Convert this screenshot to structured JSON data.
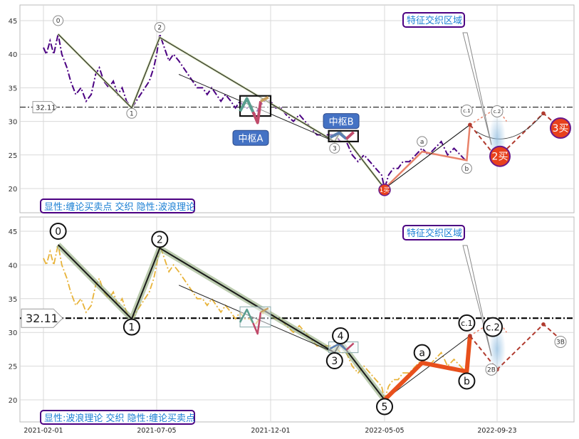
{
  "colors": {
    "price_top": "#4b0082",
    "price_bottom": "#e8b339",
    "wave_line": "#1a1a1a",
    "wave_halo": "#8faa7a",
    "buy_red": "#e8401c",
    "dash_red": "#b03a2e",
    "label_box_border": "#4b0082",
    "label_box_text": "#1a7fd4",
    "zs_fill": "#4472c4",
    "ref_line": "#000000"
  },
  "chart_data": [
    {
      "type": "line",
      "panel": "top",
      "x_ticks": [
        "2021-02-01",
        "2021-07-05",
        "2021-12-01",
        "2022-05-05",
        "2022-09-23"
      ],
      "ylim": [
        16.5,
        47.5
      ],
      "y_ticks": [
        20,
        25,
        30,
        35,
        40,
        45
      ],
      "grid": true,
      "ref_value": 32.11,
      "ref_label": "32.11",
      "caption": "显性:缠论买卖点 交织 隐性:波浪理论",
      "annotation_title": "特征交织区域",
      "series": [
        {
          "points": [
            [
              "2021-02-01",
              41
            ],
            [
              "2021-02-05",
              40
            ],
            [
              "2021-02-10",
              42
            ],
            [
              "2021-02-15",
              40
            ],
            [
              "2021-02-21",
              43
            ],
            [
              "2021-02-26",
              40
            ],
            [
              "2021-03-05",
              38
            ],
            [
              "2021-03-10",
              36
            ],
            [
              "2021-03-17",
              34
            ],
            [
              "2021-03-24",
              35
            ],
            [
              "2021-03-31",
              33
            ],
            [
              "2021-04-07",
              34
            ],
            [
              "2021-04-13",
              37
            ],
            [
              "2021-04-18",
              38
            ],
            [
              "2021-04-24",
              36
            ],
            [
              "2021-05-01",
              35
            ],
            [
              "2021-05-07",
              36
            ],
            [
              "2021-05-13",
              34
            ],
            [
              "2021-05-19",
              35
            ],
            [
              "2021-05-25",
              33
            ],
            [
              "2021-06-01",
              32
            ],
            [
              "2021-06-07",
              33
            ],
            [
              "2021-06-13",
              34
            ],
            [
              "2021-06-19",
              35
            ],
            [
              "2021-06-25",
              36
            ],
            [
              "2021-07-01",
              38
            ],
            [
              "2021-07-05",
              40
            ],
            [
              "2021-07-09",
              43
            ],
            [
              "2021-07-15",
              41
            ],
            [
              "2021-07-21",
              39
            ],
            [
              "2021-07-27",
              40
            ],
            [
              "2021-08-03",
              39
            ],
            [
              "2021-08-09",
              38
            ],
            [
              "2021-08-15",
              37
            ],
            [
              "2021-08-21",
              36
            ],
            [
              "2021-08-27",
              35
            ],
            [
              "2021-09-03",
              35
            ],
            [
              "2021-09-09",
              34
            ],
            [
              "2021-09-15",
              35
            ],
            [
              "2021-09-21",
              34
            ],
            [
              "2021-09-27",
              33
            ],
            [
              "2021-10-03",
              34
            ],
            [
              "2021-10-10",
              33
            ],
            [
              "2021-10-16",
              32
            ],
            [
              "2021-10-22",
              33
            ],
            [
              "2021-10-28",
              32
            ],
            [
              "2021-11-04",
              32
            ],
            [
              "2021-11-10",
              31
            ],
            [
              "2021-11-16",
              32
            ],
            [
              "2021-11-22",
              33
            ],
            [
              "2021-12-01",
              33
            ],
            [
              "2021-12-08",
              32
            ],
            [
              "2021-12-15",
              32
            ],
            [
              "2021-12-22",
              31
            ],
            [
              "2022-01-01",
              30
            ],
            [
              "2022-01-09",
              31
            ],
            [
              "2022-01-17",
              30
            ],
            [
              "2022-01-25",
              29
            ],
            [
              "2022-02-02",
              28
            ],
            [
              "2022-02-10",
              28
            ],
            [
              "2022-02-18",
              28
            ],
            [
              "2022-02-26",
              28
            ],
            [
              "2022-03-06",
              27
            ],
            [
              "2022-03-14",
              27
            ],
            [
              "2022-03-22",
              25
            ],
            [
              "2022-03-30",
              24
            ],
            [
              "2022-04-07",
              25
            ],
            [
              "2022-04-15",
              24
            ],
            [
              "2022-04-23",
              23
            ],
            [
              "2022-05-01",
              22
            ],
            [
              "2022-05-05",
              20
            ],
            [
              "2022-05-10",
              22
            ],
            [
              "2022-05-16",
              23
            ],
            [
              "2022-05-22",
              23
            ],
            [
              "2022-05-28",
              24
            ],
            [
              "2022-06-05",
              24
            ],
            [
              "2022-06-13",
              25
            ],
            [
              "2022-06-21",
              26
            ],
            [
              "2022-06-29",
              25
            ],
            [
              "2022-07-07",
              26
            ],
            [
              "2022-07-15",
              27
            ],
            [
              "2022-07-23",
              25
            ],
            [
              "2022-07-31",
              26
            ],
            [
              "2022-08-08",
              25
            ],
            [
              "2022-08-16",
              24
            ]
          ]
        }
      ],
      "annotations": [
        {
          "label": "0",
          "x": "2021-02-21",
          "y": 45
        },
        {
          "label": "1",
          "x": "2021-06-01",
          "y": 31.2
        },
        {
          "label": "2",
          "x": "2021-07-09",
          "y": 44
        },
        {
          "label": "3",
          "x": "2022-02-26",
          "y": 26
        },
        {
          "label": "1买",
          "x": "2022-05-05",
          "y": 19.8
        },
        {
          "label": "a",
          "x": "2022-06-21",
          "y": 27
        },
        {
          "label": "c.1",
          "x": "2022-08-16",
          "y": 31.6
        },
        {
          "label": "b",
          "x": "2022-08-16",
          "y": 23
        },
        {
          "label": "c.2",
          "x": "2022-09-23",
          "y": 31.5
        },
        {
          "label": "2买",
          "x": "2022-09-23",
          "y": 24.8
        },
        {
          "label": "3买",
          "x": "2022-11-20",
          "y": 29
        }
      ],
      "zs_labels": [
        {
          "label": "中枢A",
          "x": "2021-11-04",
          "y": 27.5
        },
        {
          "label": "中枢B",
          "x": "2022-03-06",
          "y": 30
        }
      ]
    },
    {
      "type": "line",
      "panel": "bottom",
      "x_ticks": [
        "2021-02-01",
        "2021-07-05",
        "2021-12-01",
        "2022-05-05",
        "2022-09-23"
      ],
      "ylim": [
        16.5,
        47.5
      ],
      "y_ticks": [
        20,
        25,
        30,
        35,
        40,
        45
      ],
      "grid": true,
      "ref_value": 32.11,
      "ref_label": "32.11",
      "caption": "显性:波浪理论 交织 隐性:缠论买卖点",
      "annotation_title": "特征交织区域",
      "wave_points": [
        [
          "2021-02-21",
          43
        ],
        [
          "2021-06-01",
          32
        ],
        [
          "2021-07-09",
          42.5
        ],
        [
          "2022-02-26",
          27
        ],
        [
          "2022-03-06",
          28.5
        ],
        [
          "2022-05-05",
          20
        ],
        [
          "2022-06-21",
          25.5
        ],
        [
          "2022-08-16",
          24.2
        ],
        [
          "2022-08-20",
          29.5
        ]
      ],
      "annotations": [
        {
          "label": "0",
          "x": "2021-02-21",
          "y": 45
        },
        {
          "label": "1",
          "x": "2021-06-01",
          "y": 30.8
        },
        {
          "label": "2",
          "x": "2021-07-09",
          "y": 43.8
        },
        {
          "label": "3",
          "x": "2022-02-26",
          "y": 25.8
        },
        {
          "label": "4",
          "x": "2022-03-06",
          "y": 29.5
        },
        {
          "label": "5",
          "x": "2022-05-05",
          "y": 19
        },
        {
          "label": "a",
          "x": "2022-06-21",
          "y": 27
        },
        {
          "label": "b",
          "x": "2022-08-16",
          "y": 22.8
        },
        {
          "label": "c.1",
          "x": "2022-08-16",
          "y": 31.4
        },
        {
          "label": "c.2",
          "x": "2022-09-23",
          "y": 30.8
        },
        {
          "label": "2B",
          "x": "2022-09-23",
          "y": 24.5
        },
        {
          "label": "3B",
          "x": "2022-11-20",
          "y": 28.6
        }
      ]
    }
  ]
}
